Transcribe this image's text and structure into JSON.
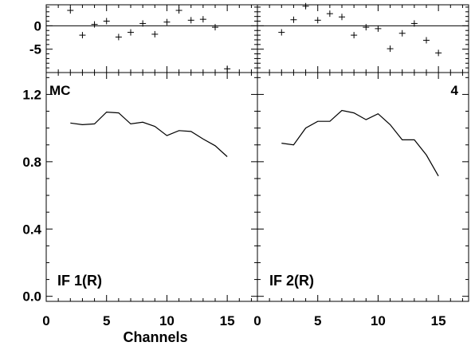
{
  "chart_data": [
    {
      "type": "scatter",
      "panel": "top-left residuals",
      "x": [
        2,
        3,
        4,
        5,
        6,
        7,
        8,
        9,
        10,
        11,
        12,
        13,
        14,
        15
      ],
      "y": [
        3.3,
        -2.0,
        0.3,
        1.0,
        -2.4,
        -1.4,
        0.5,
        -1.8,
        0.8,
        3.3,
        1.2,
        1.4,
        -0.3,
        -9.2
      ],
      "xlim": [
        0,
        17.5
      ],
      "ylim": [
        -10,
        4.5
      ],
      "yticks": [
        0,
        -5
      ],
      "ytick_labels": [
        "0",
        "-5"
      ],
      "reference_line": 0
    },
    {
      "type": "scatter",
      "panel": "top-right residuals",
      "x": [
        2,
        3,
        4,
        5,
        6,
        7,
        8,
        9,
        10,
        11,
        12,
        13,
        14,
        15
      ],
      "y": [
        -1.4,
        1.3,
        4.2,
        1.2,
        2.6,
        1.9,
        -2.0,
        -0.3,
        -0.6,
        -4.9,
        -1.6,
        0.5,
        -3.1,
        -5.8
      ],
      "xlim": [
        0,
        17.5
      ],
      "ylim": [
        -10,
        4.5
      ],
      "reference_line": 0
    },
    {
      "type": "line",
      "panel": "bottom-left",
      "x": [
        2,
        3,
        4,
        5,
        6,
        7,
        8,
        9,
        10,
        11,
        12,
        13,
        14,
        15
      ],
      "y": [
        1.03,
        1.02,
        1.025,
        1.095,
        1.09,
        1.025,
        1.035,
        1.01,
        0.955,
        0.985,
        0.98,
        0.935,
        0.895,
        0.83
      ],
      "xlim": [
        0,
        17.5
      ],
      "ylim": [
        -0.03,
        1.33
      ],
      "xticks": [
        0,
        5,
        10,
        15
      ],
      "xtick_labels": [
        "0",
        "5",
        "10",
        "15"
      ],
      "yticks": [
        0,
        0.4,
        0.8,
        1.2
      ],
      "ytick_labels": [
        "0.0",
        "0.4",
        "0.8",
        "1.2"
      ]
    },
    {
      "type": "line",
      "panel": "bottom-right",
      "x": [
        2,
        3,
        4,
        5,
        6,
        7,
        8,
        9,
        10,
        11,
        12,
        13,
        14,
        15
      ],
      "y": [
        0.91,
        0.9,
        1.0,
        1.04,
        1.04,
        1.105,
        1.09,
        1.05,
        1.085,
        1.02,
        0.93,
        0.93,
        0.84,
        0.715
      ],
      "xlim": [
        0,
        17.5
      ],
      "ylim": [
        -0.03,
        1.33
      ],
      "xticks": [
        0,
        5,
        10,
        15
      ],
      "xtick_labels": [
        "0",
        "5",
        "10",
        "15"
      ]
    }
  ],
  "labels": {
    "xlabel": "Channels",
    "source_label": "MC",
    "index_label": "4",
    "panel_left_label": "IF 1(R)",
    "panel_right_label": "IF 2(R)"
  }
}
